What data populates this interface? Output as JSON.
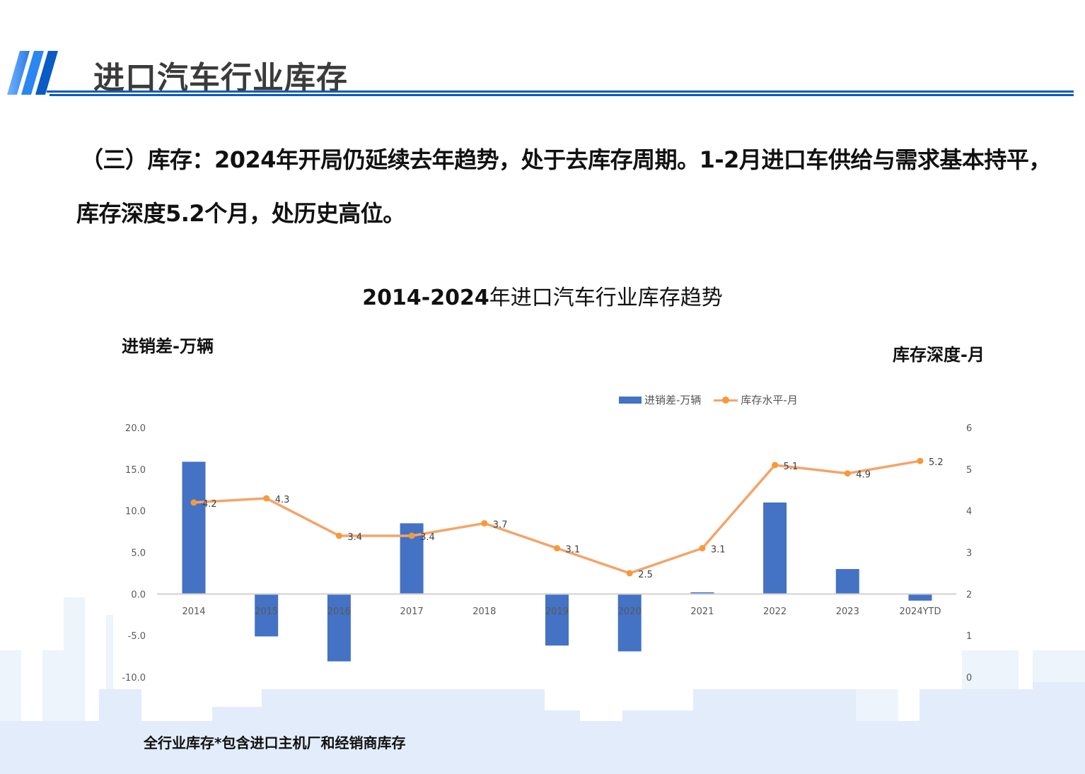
{
  "header": {
    "title": "进口汽车行业库存"
  },
  "summary": {
    "line1": "（三）库存：2024年开局仍延续去年趋势，处于去库存周期。1-2月进口车供给与需求基本持平，",
    "line2": "库存深度5.2个月，处历史高位。"
  },
  "chart": {
    "title_bold": "2014-2024",
    "title_rest": "年进口汽车行业库存趋势",
    "left_axis_label": "进销差-万辆",
    "right_axis_label": "库存深度-月",
    "legend": {
      "bar": "进销差-万辆",
      "line": "库存水平-月"
    },
    "footnote": "全行业库存*包含进口主机厂和经销商库存"
  },
  "colors": {
    "bar": "#4472c4",
    "line": "#f4a46a",
    "marker": "#f59a3a",
    "accent": "#0a5bc4",
    "axis": "#d0d0d0"
  },
  "chart_data": {
    "type": "bar+line",
    "title": "2014-2024年进口汽车行业库存趋势",
    "categories": [
      "2014",
      "2015",
      "2016",
      "2017",
      "2018",
      "2019",
      "2020",
      "2021",
      "2022",
      "2023",
      "2024YTD"
    ],
    "series": [
      {
        "name": "进销差-万辆",
        "type": "bar",
        "axis": "left",
        "values": [
          15.9,
          -5.1,
          -8.1,
          8.5,
          0.0,
          -6.2,
          -6.9,
          0.2,
          11.0,
          3.0,
          -0.8
        ]
      },
      {
        "name": "库存水平-月",
        "type": "line",
        "axis": "right",
        "values": [
          4.2,
          4.3,
          3.4,
          3.4,
          3.7,
          3.1,
          2.5,
          3.1,
          5.1,
          4.9,
          5.2
        ],
        "data_labels": [
          "4.2",
          "4.3",
          "3.4",
          "3.4",
          "3.7",
          "3.1",
          "2.5",
          "3.1",
          "5.1",
          "4.9",
          "5.2"
        ]
      }
    ],
    "left_axis": {
      "label": "进销差-万辆",
      "ylim": [
        -10,
        20
      ],
      "ticks": [
        "20.0",
        "15.0",
        "10.0",
        "5.0",
        "0.0",
        "-5.0",
        "-10.0"
      ]
    },
    "right_axis": {
      "label": "库存深度-月",
      "ylim": [
        0,
        6
      ],
      "ticks": [
        "6",
        "5",
        "4",
        "3",
        "2",
        "1",
        "0"
      ]
    },
    "grid": false,
    "legend_position": "top-right"
  }
}
